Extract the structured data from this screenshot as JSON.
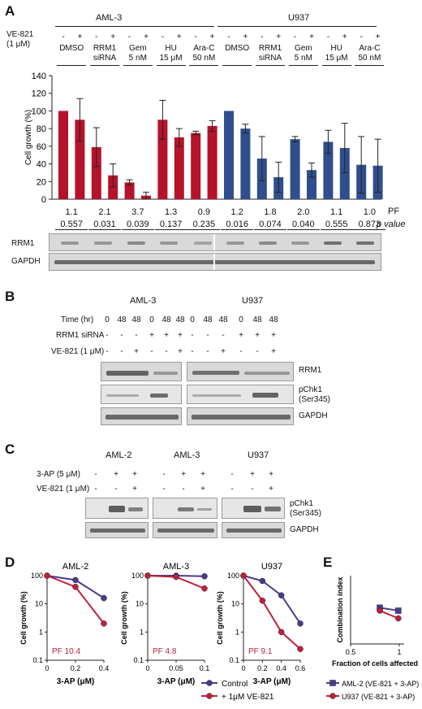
{
  "panelA": {
    "letter": "A",
    "cell_lines": [
      "AML-3",
      "U937"
    ],
    "ve821_label1": "VE-821",
    "ve821_label2": "(1 μM)",
    "pm": [
      "-",
      "+"
    ],
    "group_labels": [
      [
        "DMSO",
        ""
      ],
      [
        "RRM1",
        "siRNA"
      ],
      [
        "Gem",
        "5 nM"
      ],
      [
        "HU",
        "15 μM"
      ],
      [
        "Ara-C",
        "50 nM"
      ]
    ],
    "pf_label": "PF",
    "pval_label": "p value",
    "pf": [
      "1.1",
      "2.1",
      "3.7",
      "1.3",
      "0.9",
      "1.2",
      "1.8",
      "2.0",
      "1.1",
      "1.0"
    ],
    "pvalues": [
      "0.557",
      "0.031",
      "0.039",
      "0.137",
      "0.235",
      "0.016",
      "0.074",
      "0.040",
      "0.555",
      "0.873"
    ],
    "blot_labels": [
      "RRM1",
      "GAPDH"
    ],
    "colors": {
      "aml3": "#b5132b",
      "u937": "#2e4f8b"
    }
  },
  "panelB": {
    "letter": "B",
    "cell_lines": [
      "AML-3",
      "U937"
    ],
    "row_labels": [
      "Time (hr)",
      "RRM1 siRNA",
      "VE-821 (1 μM)"
    ],
    "time": [
      "0",
      "48",
      "48",
      "0",
      "48",
      "48"
    ],
    "sirna": [
      "-",
      "-",
      "-",
      "+",
      "+",
      "+"
    ],
    "ve821": [
      "-",
      "-",
      "+",
      "-",
      "-",
      "+"
    ],
    "blot_labels": [
      "RRM1",
      "pChk1",
      "(Ser345)",
      "GAPDH"
    ]
  },
  "panelC": {
    "letter": "C",
    "cell_lines": [
      "AML-2",
      "AML-3",
      "U937"
    ],
    "row_labels": [
      "3-AP (5 μM)",
      "VE-821 (1 μM)"
    ],
    "threeap": [
      "-",
      "+",
      "+"
    ],
    "ve821": [
      "-",
      "-",
      "+"
    ],
    "blot_labels": [
      "pChk1",
      "(Ser345)",
      "GAPDH"
    ]
  },
  "panelD": {
    "letter": "D"
  },
  "panelE": {
    "letter": "E"
  },
  "chart_data": [
    {
      "type": "bar",
      "title": "",
      "ylabel": "Cell growth (%)",
      "ylim": [
        0,
        140
      ],
      "yticks": [
        0,
        20,
        40,
        60,
        80,
        100,
        120,
        140
      ],
      "categories": [
        "DMSO -",
        "DMSO +",
        "RRM1 siRNA -",
        "RRM1 siRNA +",
        "Gem -",
        "Gem +",
        "HU -",
        "HU +",
        "Ara-C -",
        "Ara-C +",
        "DMSO -",
        "DMSO +",
        "RRM1 siRNA -",
        "RRM1 siRNA +",
        "Gem -",
        "Gem +",
        "HU -",
        "HU +",
        "Ara-C -",
        "Ara-C +"
      ],
      "series": [
        {
          "values": [
            100,
            90,
            59,
            27,
            19,
            4,
            90,
            70,
            75,
            83,
            100,
            80,
            46,
            25,
            68,
            33,
            65,
            58,
            39,
            38
          ],
          "errors": [
            0,
            24,
            22,
            13,
            3,
            4,
            22,
            10,
            2,
            6,
            0,
            5,
            25,
            17,
            3,
            8,
            13,
            28,
            32,
            30
          ]
        }
      ]
    },
    {
      "type": "line",
      "title": "AML-2",
      "xlabel": "3-AP (μM)",
      "ylabel": "Cell growth (%)",
      "ylog": true,
      "ylim": [
        0.1,
        100
      ],
      "yticks": [
        "0.1",
        "1",
        "10",
        "100"
      ],
      "x": [
        0,
        0.2,
        0.4
      ],
      "xticks": [
        "0",
        "0.2",
        "0.4"
      ],
      "annotation": "PF 10.4",
      "series": [
        {
          "name": "Control",
          "values": [
            100,
            70,
            16
          ],
          "color": "#4b3b8f"
        },
        {
          "name": "+ 1μM VE-821",
          "values": [
            100,
            40,
            2
          ],
          "color": "#c0203a"
        }
      ]
    },
    {
      "type": "line",
      "title": "AML-3",
      "xlabel": "3-AP (μM)",
      "ylabel": "Cell growth (%)",
      "ylog": true,
      "ylim": [
        0.1,
        100
      ],
      "yticks": [
        "0.1",
        "1",
        "10",
        "100"
      ],
      "x": [
        0,
        0.05,
        0.1
      ],
      "xticks": [
        "0",
        "0.05",
        "0.1"
      ],
      "annotation": "PF 4.8",
      "series": [
        {
          "name": "Control",
          "values": [
            100,
            100,
            95
          ],
          "color": "#4b3b8f"
        },
        {
          "name": "+ 1μM VE-821",
          "values": [
            100,
            90,
            35
          ],
          "color": "#c0203a"
        }
      ]
    },
    {
      "type": "line",
      "title": "U937",
      "xlabel": "3-AP (μM)",
      "ylabel": "Cell growth (%)",
      "ylog": true,
      "ylim": [
        0.1,
        100
      ],
      "yticks": [
        "0.1",
        "1",
        "10",
        "100"
      ],
      "x": [
        0,
        0.2,
        0.4,
        0.6
      ],
      "xticks": [
        "0",
        "0.2",
        "0.4",
        "0.6"
      ],
      "annotation": "PF 9.1",
      "series": [
        {
          "name": "Control",
          "values": [
            100,
            65,
            20,
            2
          ],
          "color": "#4b3b8f"
        },
        {
          "name": "+ 1μM VE-821",
          "values": [
            100,
            13,
            1,
            0.25
          ],
          "color": "#c0203a"
        }
      ]
    },
    {
      "type": "line",
      "title": "",
      "xlabel": "Fraction of cells affected",
      "ylabel": "Combination index",
      "xlim": [
        0.5,
        1
      ],
      "xticks": [
        "0.5",
        "1"
      ],
      "series": [
        {
          "name": "AML-2 (VE-821 + 3-AP)",
          "x": [
            0.8,
            0.99
          ],
          "values": [
            0.85,
            0.78
          ],
          "color": "#4b3b8f",
          "marker": "square"
        },
        {
          "name": "U937 (VE-821 + 3-AP)",
          "x": [
            0.8,
            0.99
          ],
          "values": [
            0.78,
            0.6
          ],
          "color": "#c0203a",
          "marker": "circle"
        }
      ]
    }
  ]
}
